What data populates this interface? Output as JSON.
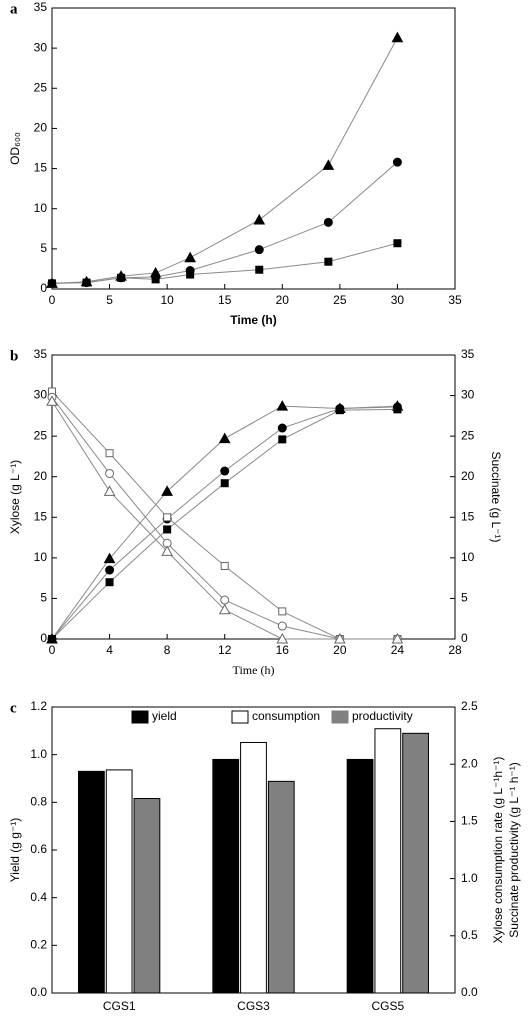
{
  "chart_data": [
    {
      "type": "line",
      "panel": "a",
      "xlabel": "Time (h)",
      "ylabel": "OD₆₀₀",
      "x": [
        0,
        3,
        6,
        9,
        12,
        18,
        24,
        30
      ],
      "xlim": [
        0,
        35
      ],
      "xticks": [
        0,
        5,
        10,
        15,
        20,
        25,
        30,
        35
      ],
      "ylim": [
        0,
        35
      ],
      "yticks": [
        0,
        5,
        10,
        15,
        20,
        25,
        30,
        35
      ],
      "series": [
        {
          "marker": "triangle",
          "filled": true,
          "color": "#000000",
          "values": [
            0.7,
            0.9,
            1.6,
            2.0,
            3.9,
            8.6,
            15.4,
            31.3
          ]
        },
        {
          "marker": "circle",
          "filled": true,
          "color": "#000000",
          "values": [
            0.7,
            0.8,
            1.4,
            1.5,
            2.3,
            4.9,
            8.3,
            15.8
          ]
        },
        {
          "marker": "square",
          "filled": true,
          "color": "#000000",
          "values": [
            0.7,
            0.8,
            1.4,
            1.2,
            1.8,
            2.4,
            3.4,
            5.7
          ]
        }
      ]
    },
    {
      "type": "line",
      "panel": "b",
      "xlabel": "Time (h)",
      "ylabel": "Xylose (g L⁻¹)",
      "y2label": "Succinate (g L⁻¹)",
      "x": [
        0,
        4,
        8,
        12,
        16,
        20,
        24
      ],
      "xlim": [
        0,
        28
      ],
      "xticks": [
        0,
        4,
        8,
        12,
        16,
        20,
        24,
        28
      ],
      "ylim": [
        0,
        35
      ],
      "yticks": [
        0,
        5,
        10,
        15,
        20,
        25,
        30,
        35
      ],
      "y2lim": [
        0,
        35
      ],
      "y2ticks": [
        0,
        5,
        10,
        15,
        20,
        25,
        30,
        35
      ],
      "series": [
        {
          "marker": "triangle",
          "filled": true,
          "color": "#000000",
          "axis": "y2",
          "values": [
            0,
            9.9,
            18.2,
            24.7,
            28.7,
            28.4,
            28.7
          ]
        },
        {
          "marker": "circle",
          "filled": true,
          "color": "#000000",
          "axis": "y2",
          "values": [
            0,
            8.5,
            14.8,
            20.7,
            26.0,
            28.4,
            28.6
          ]
        },
        {
          "marker": "square",
          "filled": true,
          "color": "#000000",
          "axis": "y2",
          "values": [
            0,
            7.0,
            13.5,
            19.2,
            24.6,
            28.2,
            28.3
          ]
        },
        {
          "marker": "square",
          "filled": false,
          "color": "#666666",
          "values": [
            30.5,
            22.9,
            15.0,
            9.0,
            3.4,
            0,
            0
          ]
        },
        {
          "marker": "circle",
          "filled": false,
          "color": "#666666",
          "values": [
            29.8,
            20.4,
            11.8,
            4.8,
            1.6,
            0,
            0
          ]
        },
        {
          "marker": "triangle",
          "filled": false,
          "color": "#666666",
          "values": [
            29.3,
            18.2,
            10.8,
            3.6,
            0,
            0,
            0
          ]
        }
      ]
    },
    {
      "type": "bar",
      "panel": "c",
      "ylabel": "Yield (g g⁻¹)",
      "y2label": [
        "Xylose consumption rate (g L⁻¹h⁻¹)",
        "Succinate productivity (g L⁻¹ h⁻¹)"
      ],
      "categories": [
        "CGS1",
        "CGS3",
        "CGS5"
      ],
      "ylim": [
        0,
        1.2
      ],
      "yticks": [
        {
          "value": 0,
          "label": "0.0"
        },
        0.2,
        0.4,
        0.6,
        0.8,
        {
          "value": 1,
          "label": "1.0"
        },
        1.2
      ],
      "y2lim": [
        0,
        2.5
      ],
      "y2ticks": [
        {
          "value": 0,
          "label": "0.0"
        },
        0.5,
        {
          "value": 1,
          "label": "1.0"
        },
        1.5,
        {
          "value": 2,
          "label": "2.0"
        },
        2.5
      ],
      "legend": "top",
      "series": [
        {
          "name": "yield",
          "color": "#000000",
          "values": [
            0.93,
            0.98,
            0.98
          ]
        },
        {
          "name": "consumption",
          "color": "#ffffff",
          "axis": "y2",
          "values": [
            1.95,
            2.19,
            2.31
          ]
        },
        {
          "name": "productivity",
          "color": "#808080",
          "axis": "y2",
          "values": [
            1.7,
            1.85,
            2.27
          ]
        }
      ]
    }
  ]
}
